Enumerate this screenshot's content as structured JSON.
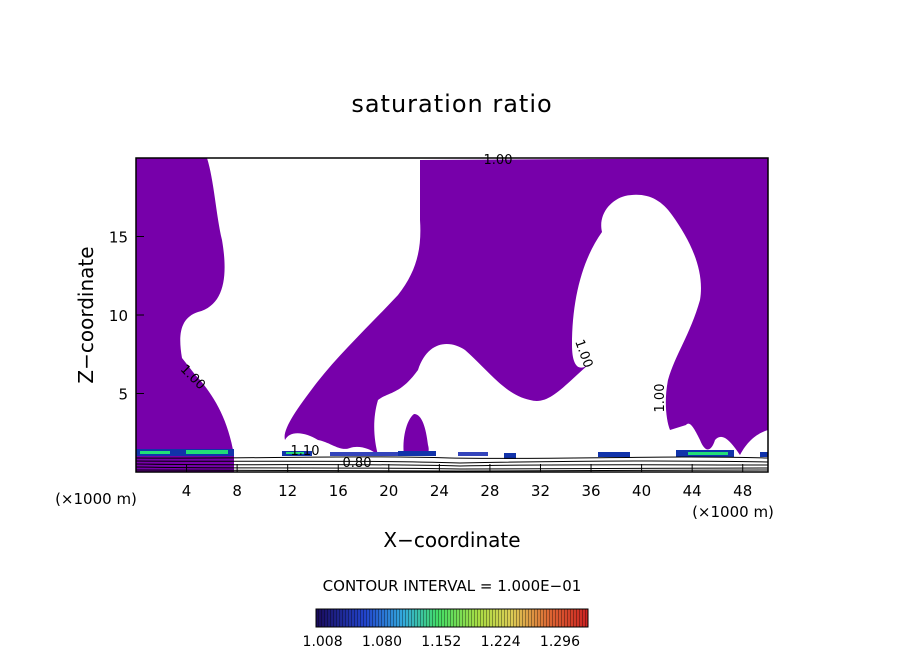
{
  "chart_data": {
    "type": "heatmap",
    "title": "saturation ratio",
    "xlabel": "X−coordinate",
    "ylabel": "Z−coordinate",
    "x_unit_left": "(×1000 m)",
    "x_unit_right": "(×1000 m)",
    "xlim": [
      0,
      50
    ],
    "ylim": [
      0,
      20
    ],
    "x_ticks": [
      "4",
      "8",
      "12",
      "16",
      "20",
      "24",
      "28",
      "32",
      "36",
      "40",
      "44",
      "48"
    ],
    "y_ticks": [
      "5",
      "10",
      "15"
    ],
    "contour_interval_text": "CONTOUR INTERVAL = 1.000E−01",
    "contour_labels": [
      "1.00",
      "1.00",
      "1.00",
      "1.00",
      "1.10",
      "0.80"
    ],
    "colorbar": {
      "ticks": [
        "1.008",
        "1.080",
        "1.152",
        "1.224",
        "1.296"
      ],
      "range": [
        1.0,
        1.33
      ]
    },
    "supersaturated_color": "#7700aa",
    "low_level_color": "#22dd77",
    "grid": false
  }
}
